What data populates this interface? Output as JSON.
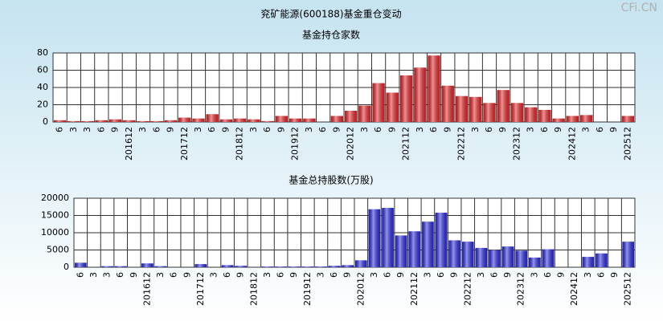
{
  "title": "兖矿能源(600188)基金重仓变动",
  "watermark": "CFi.CN",
  "chart_data": [
    {
      "type": "bar",
      "title": "基金持仓家数",
      "categories": [
        "6",
        "3",
        "3",
        "6",
        "9",
        "201612",
        "3",
        "6",
        "9",
        "201712",
        "3",
        "6",
        "9",
        "201812",
        "3",
        "6",
        "9",
        "201912",
        "3",
        "6",
        "9",
        "202012",
        "3",
        "6",
        "9",
        "202112",
        "3",
        "6",
        "9",
        "202212",
        "3",
        "6",
        "9",
        "202312",
        "3",
        "6",
        "9",
        "202412",
        "3",
        "6",
        "9",
        "202512"
      ],
      "values": [
        2,
        1,
        1,
        2,
        3,
        2,
        1,
        1,
        2,
        5,
        4,
        9,
        3,
        4,
        3,
        1,
        7,
        4,
        4,
        0,
        7,
        13,
        19,
        45,
        34,
        54,
        63,
        77,
        42,
        30,
        29,
        22,
        37,
        22,
        17,
        14,
        4,
        7,
        8,
        0,
        0,
        7
      ],
      "color": "#e8262a",
      "ylim": [
        0,
        80
      ],
      "yticks": [
        0,
        20,
        40,
        60,
        80
      ],
      "grid": true
    },
    {
      "type": "bar",
      "title": "基金总持股数(万股)",
      "categories": [
        "6",
        "3",
        "3",
        "6",
        "9",
        "201612",
        "3",
        "6",
        "9",
        "201712",
        "3",
        "6",
        "9",
        "201812",
        "3",
        "6",
        "9",
        "201912",
        "3",
        "6",
        "9",
        "202012",
        "3",
        "6",
        "9",
        "202112",
        "3",
        "6",
        "9",
        "202212",
        "3",
        "6",
        "9",
        "202312",
        "3",
        "6",
        "9",
        "202412",
        "3",
        "6",
        "9",
        "202512"
      ],
      "values": [
        1300,
        0,
        300,
        300,
        0,
        1100,
        300,
        0,
        0,
        900,
        0,
        600,
        400,
        0,
        200,
        200,
        200,
        200,
        200,
        400,
        600,
        2000,
        16800,
        17200,
        9200,
        10400,
        13200,
        15800,
        7800,
        7400,
        5600,
        5000,
        6000,
        4800,
        2800,
        5200,
        0,
        0,
        3000,
        4000,
        0,
        7400
      ],
      "color": "#2a2ae0",
      "ylim": [
        0,
        20000
      ],
      "yticks": [
        0,
        5000,
        10000,
        15000,
        20000
      ],
      "grid": true
    }
  ]
}
